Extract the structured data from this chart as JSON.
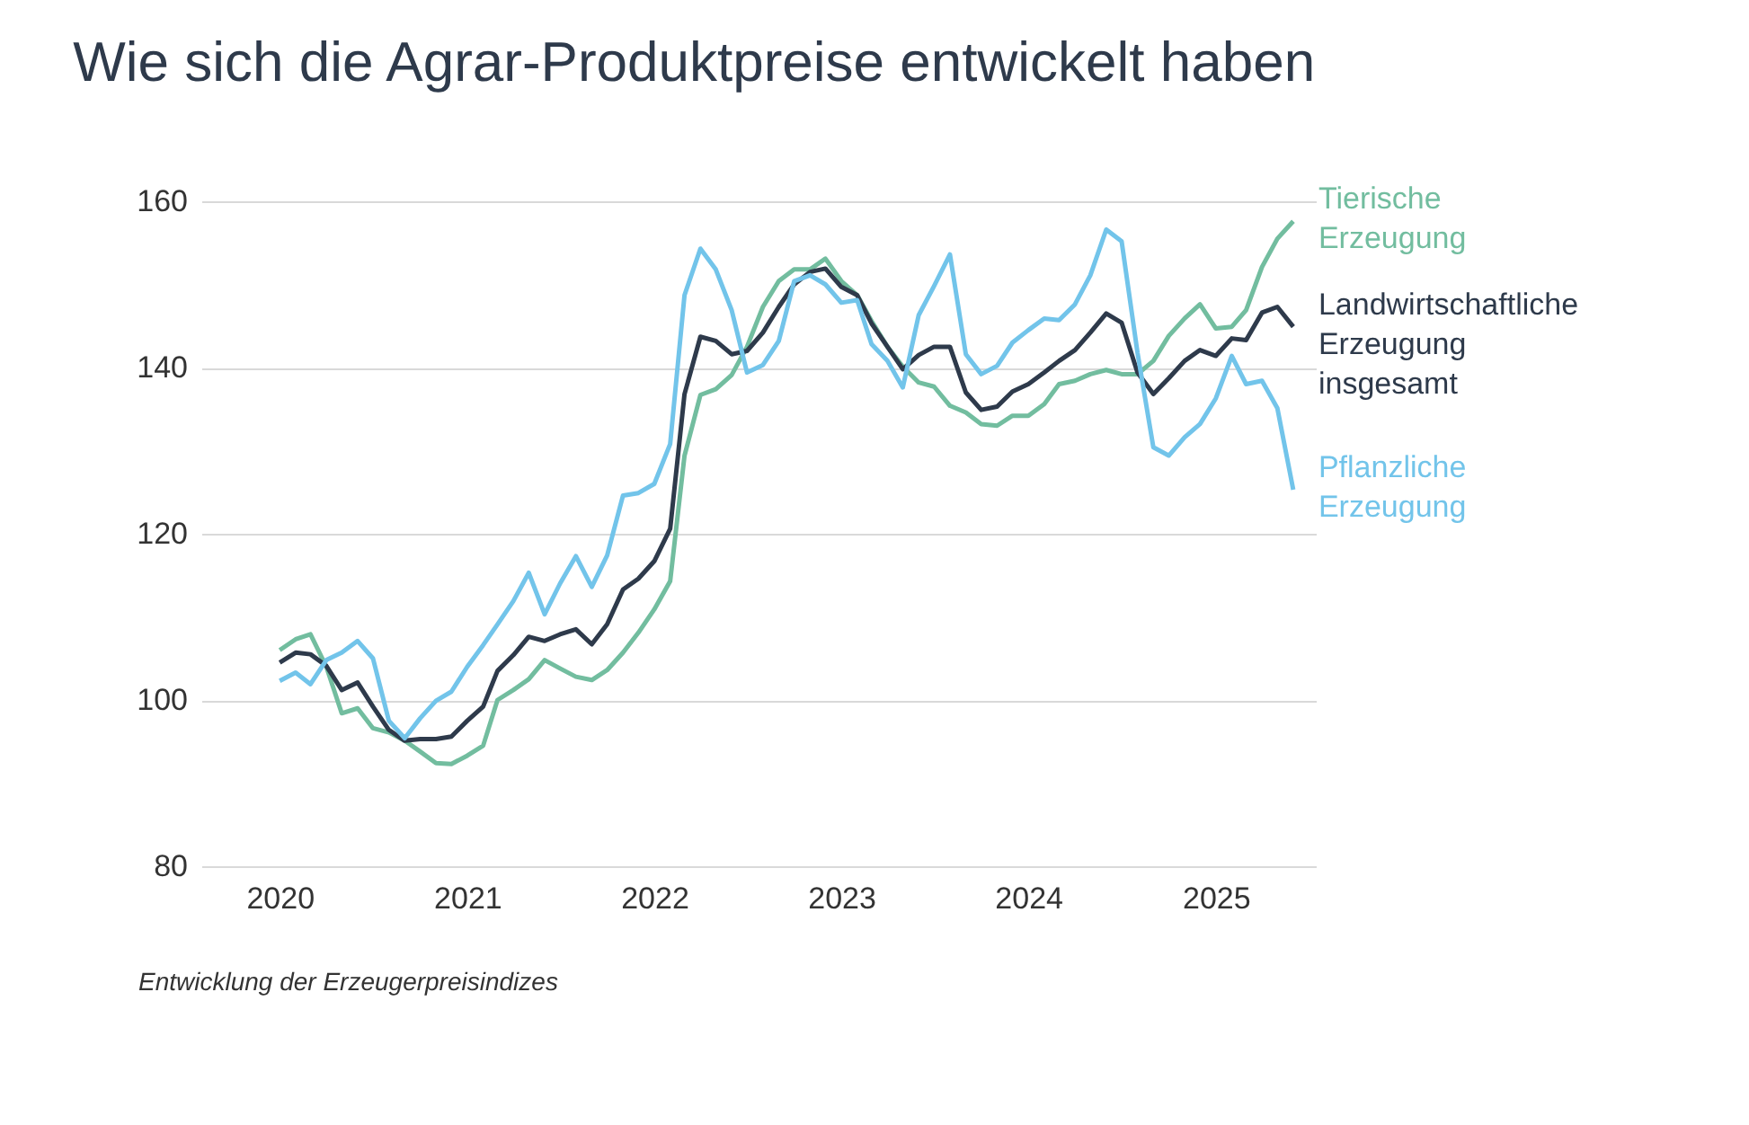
{
  "chart_data": {
    "type": "line",
    "title": "Wie sich die Agrar-Produktpreise entwickelt haben",
    "annotations": [
      "Entwicklung der Erzeugerpreisindizes"
    ],
    "x": [
      "2020-01",
      "2020-02",
      "2020-03",
      "2020-04",
      "2020-05",
      "2020-06",
      "2020-07",
      "2020-08",
      "2020-09",
      "2020-10",
      "2020-11",
      "2020-12",
      "2021-01",
      "2021-02",
      "2021-03",
      "2021-04",
      "2021-05",
      "2021-06",
      "2021-07",
      "2021-08",
      "2021-09",
      "2021-10",
      "2021-11",
      "2021-12",
      "2022-01",
      "2022-02",
      "2022-03",
      "2022-04",
      "2022-05",
      "2022-06",
      "2022-07",
      "2022-08",
      "2022-09",
      "2022-10",
      "2022-11",
      "2022-12",
      "2023-01",
      "2023-02",
      "2023-03",
      "2023-04",
      "2023-05",
      "2023-06",
      "2023-07",
      "2023-08",
      "2023-09",
      "2023-10",
      "2023-11",
      "2023-12",
      "2024-01",
      "2024-02",
      "2024-03",
      "2024-04",
      "2024-05",
      "2024-06",
      "2024-07",
      "2024-08",
      "2024-09",
      "2024-10",
      "2024-11",
      "2024-12",
      "2025-01",
      "2025-02",
      "2025-03",
      "2025-04",
      "2025-05",
      "2025-06"
    ],
    "series": [
      {
        "name": "Tierische Erzeugung",
        "color": "#72bd9f",
        "values": [
          106.0,
          107.3,
          107.9,
          104.0,
          98.4,
          99.0,
          96.6,
          96.1,
          95.1,
          93.8,
          92.4,
          92.3,
          93.3,
          94.5,
          100.0,
          101.2,
          102.5,
          104.8,
          103.8,
          102.8,
          102.4,
          103.6,
          105.7,
          108.1,
          110.9,
          114.3,
          129.4,
          136.7,
          137.4,
          139.1,
          142.5,
          147.3,
          150.4,
          151.8,
          151.8,
          153.1,
          150.4,
          148.7,
          145.6,
          142.5,
          140.1,
          138.2,
          137.7,
          135.4,
          134.6,
          133.2,
          133.0,
          134.2,
          134.2,
          135.6,
          138.0,
          138.4,
          139.2,
          139.7,
          139.2,
          139.2,
          140.8,
          143.8,
          145.9,
          147.6,
          144.7,
          144.9,
          146.9,
          152.1,
          155.5,
          157.6
        ]
      },
      {
        "name": "Landwirtschaftliche Erzeugung insgesamt",
        "color": "#2e3a4b",
        "values": [
          104.5,
          105.7,
          105.5,
          104.1,
          101.2,
          102.1,
          99.2,
          96.4,
          95.1,
          95.3,
          95.3,
          95.6,
          97.5,
          99.2,
          103.5,
          105.4,
          107.6,
          107.1,
          107.9,
          108.5,
          106.7,
          109.1,
          113.3,
          114.6,
          116.7,
          120.6,
          136.8,
          143.7,
          143.2,
          141.6,
          142.0,
          144.2,
          147.3,
          150.0,
          151.5,
          151.9,
          149.7,
          148.7,
          145.3,
          142.5,
          139.8,
          141.5,
          142.5,
          142.5,
          137.0,
          134.9,
          135.3,
          137.1,
          138.0,
          139.4,
          140.8,
          142.1,
          144.2,
          146.5,
          145.4,
          139.4,
          136.8,
          138.7,
          140.8,
          142.1,
          141.4,
          143.5,
          143.3,
          146.6,
          147.3,
          144.9
        ]
      },
      {
        "name": "Pflanzliche Erzeugung",
        "color": "#72c4ea",
        "values": [
          102.3,
          103.3,
          101.9,
          104.8,
          105.7,
          107.1,
          105.0,
          97.5,
          95.4,
          97.8,
          99.9,
          101.0,
          104.0,
          106.6,
          109.1,
          111.9,
          115.3,
          110.3,
          114.0,
          117.3,
          113.6,
          117.4,
          124.6,
          124.9,
          126.0,
          130.8,
          148.7,
          154.3,
          151.8,
          146.9,
          139.4,
          140.3,
          143.2,
          150.4,
          151.1,
          150.0,
          147.8,
          148.1,
          142.8,
          140.8,
          137.6,
          146.3,
          149.8,
          153.6,
          141.6,
          139.2,
          140.2,
          143.0,
          144.5,
          145.9,
          145.7,
          147.6,
          151.1,
          156.6,
          155.2,
          141.8,
          130.4,
          129.4,
          131.6,
          133.2,
          136.3,
          141.4,
          138.0,
          138.4,
          135.1,
          125.3
        ]
      }
    ],
    "xlim": [
      "2019-08-01",
      "2025-07-15"
    ],
    "xticks": [
      "2020",
      "2021",
      "2022",
      "2023",
      "2024",
      "2025"
    ],
    "ylim": [
      80,
      160
    ],
    "yticks": [
      80,
      100,
      120,
      140,
      160
    ],
    "grid": "y",
    "legend": false,
    "marker": "none",
    "line_style": "solid"
  }
}
